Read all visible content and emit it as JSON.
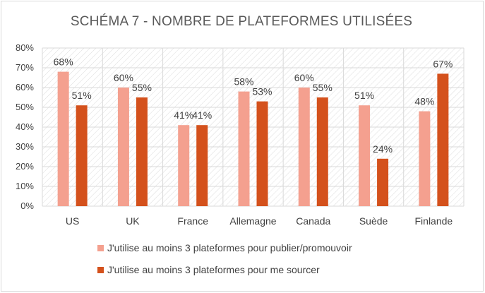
{
  "chart_data": {
    "type": "bar",
    "title": "SCHÉMA 7  - NOMBRE DE PLATEFORMES UTILISÉES",
    "categories": [
      "US",
      "UK",
      "France",
      "Allemagne",
      "Canada",
      "Suède",
      "Finlande"
    ],
    "series": [
      {
        "name": "J'utilise au moins 3 plateformes pour publier/promouvoir",
        "values": [
          68,
          60,
          41,
          58,
          60,
          51,
          48
        ],
        "labels": [
          "68%",
          "60%",
          "41%",
          "58%",
          "60%",
          "51%",
          "48%"
        ],
        "color": "#f4a08f"
      },
      {
        "name": "J'utilise au moins 3 plateformes pour me sourcer",
        "values": [
          51,
          55,
          41,
          53,
          55,
          24,
          67
        ],
        "labels": [
          "51%",
          "55%",
          "41%",
          "53%",
          "55%",
          "24%",
          "67%"
        ],
        "color": "#d4511c"
      }
    ],
    "ylim": [
      0,
      80
    ],
    "yticks": [
      0,
      10,
      20,
      30,
      40,
      50,
      60,
      70,
      80
    ],
    "ytick_labels": [
      "0%",
      "10%",
      "20%",
      "30%",
      "40%",
      "50%",
      "60%",
      "70%",
      "80%"
    ],
    "grid": true,
    "legend_position": "bottom"
  }
}
